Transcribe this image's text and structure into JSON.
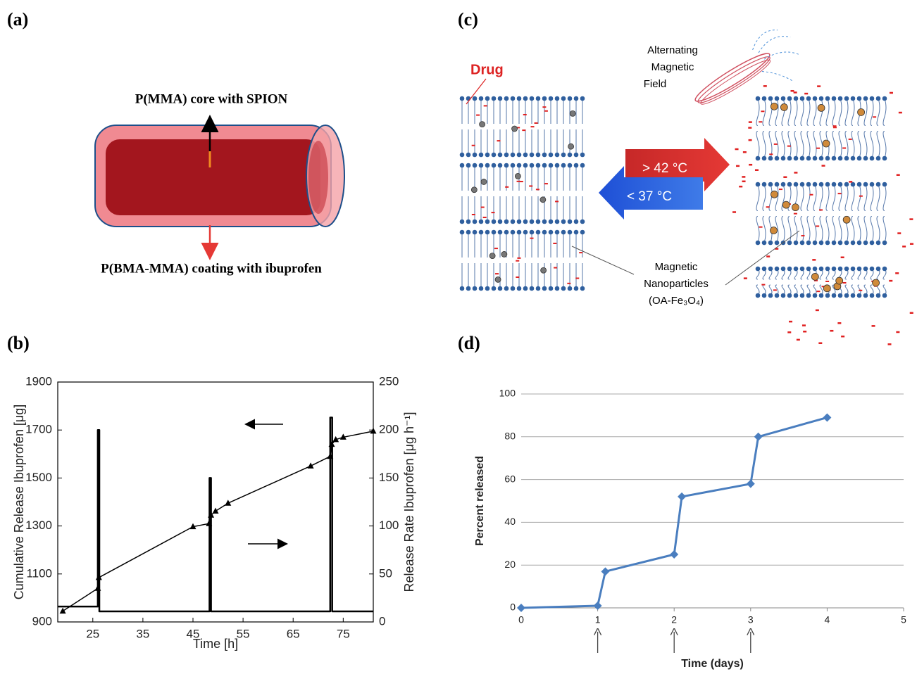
{
  "panel_labels": [
    "(a)",
    "(b)",
    "(c)",
    "(d)"
  ],
  "diagram_a": {
    "core_label": "P(MMA) core with SPION",
    "coating_label": "P(BMA-MMA) coating with ibuprofen"
  },
  "diagram_c": {
    "drug_label": "Drug",
    "field_label": [
      "Alternating",
      "Magnetic",
      "Field"
    ],
    "heat_label": "> 42 °C",
    "cool_label": "< 37 °C",
    "particle_label": [
      "Magnetic",
      "Nanoparticles",
      "(OA-Fe₃O₄)"
    ]
  },
  "chart_data": [
    {
      "type": "line",
      "xlabel": "Time [h]",
      "ylabel": "Cumulative Release Ibuprofen [μg]",
      "y2label": "Release Rate Ibuprofen [μg h⁻¹]",
      "xlim": [
        18,
        81
      ],
      "xticks": [
        25,
        35,
        45,
        55,
        65,
        75
      ],
      "ylim": [
        900,
        1900
      ],
      "yticks": [
        900,
        1100,
        1300,
        1500,
        1700,
        1900
      ],
      "y2lim": [
        0,
        250
      ],
      "y2ticks": [
        0,
        50,
        100,
        150,
        200,
        250
      ],
      "grid": false,
      "series": [
        {
          "color": "#000000",
          "marker": "triangle",
          "x": [
            19,
            26,
            26.2,
            45,
            48.2,
            48.6,
            49.5,
            52,
            68.5,
            72.4,
            72.7,
            73.5,
            75,
            81
          ],
          "values": [
            945,
            1040,
            1085,
            1297,
            1310,
            1345,
            1362,
            1395,
            1550,
            1590,
            1640,
            1660,
            1670,
            1695
          ]
        },
        {
          "color": "#000000",
          "axis": "y2",
          "x": [
            18,
            26,
            26,
            26.3,
            26.3,
            48.3,
            48.3,
            48.6,
            48.6,
            72.4,
            72.4,
            72.8,
            72.8,
            81
          ],
          "values": [
            16,
            16,
            200,
            200,
            11,
            11,
            150,
            150,
            11,
            11,
            213,
            213,
            11,
            11
          ]
        }
      ]
    },
    {
      "type": "line",
      "xlabel": "Time (days)",
      "ylabel": "Percent released",
      "xlim": [
        0,
        5
      ],
      "xticks": [
        0,
        1,
        2,
        3,
        4,
        5
      ],
      "ylim": [
        0,
        100
      ],
      "yticks": [
        0,
        20,
        40,
        60,
        80,
        100
      ],
      "grid": true,
      "series": [
        {
          "color": "#4a7ebf",
          "marker": "diamond",
          "x": [
            0,
            1,
            1.1,
            2,
            2.1,
            3,
            3.1,
            4
          ],
          "values": [
            0,
            1,
            17,
            25,
            52,
            58,
            80,
            89
          ]
        }
      ],
      "arrow_x": [
        1,
        2,
        3
      ]
    }
  ]
}
